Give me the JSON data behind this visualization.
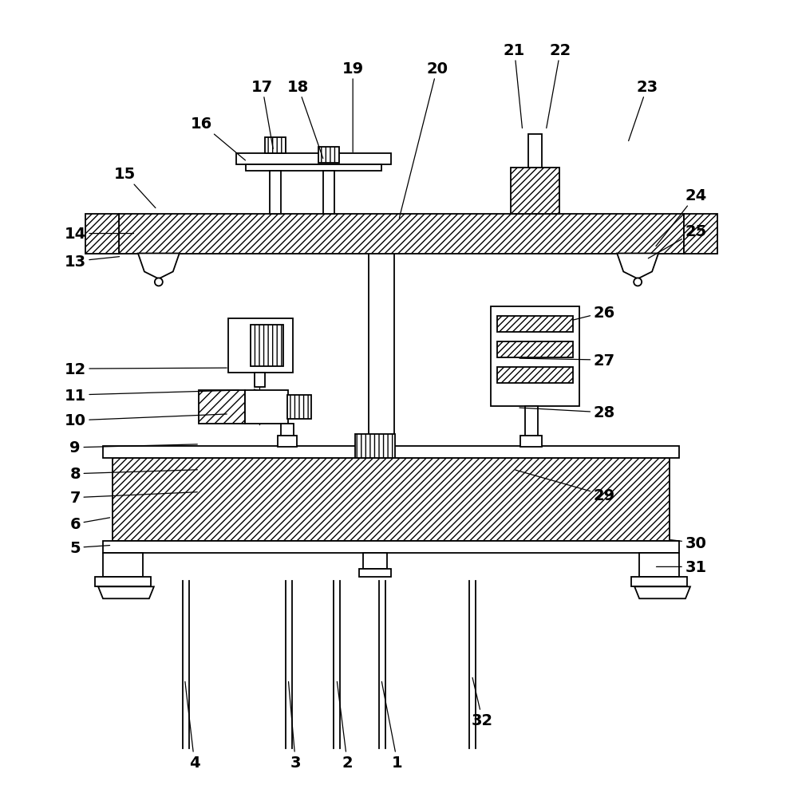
{
  "bg_color": "#ffffff",
  "line_color": "#000000",
  "figsize": [
    10.0,
    9.95
  ],
  "dpi": 100
}
